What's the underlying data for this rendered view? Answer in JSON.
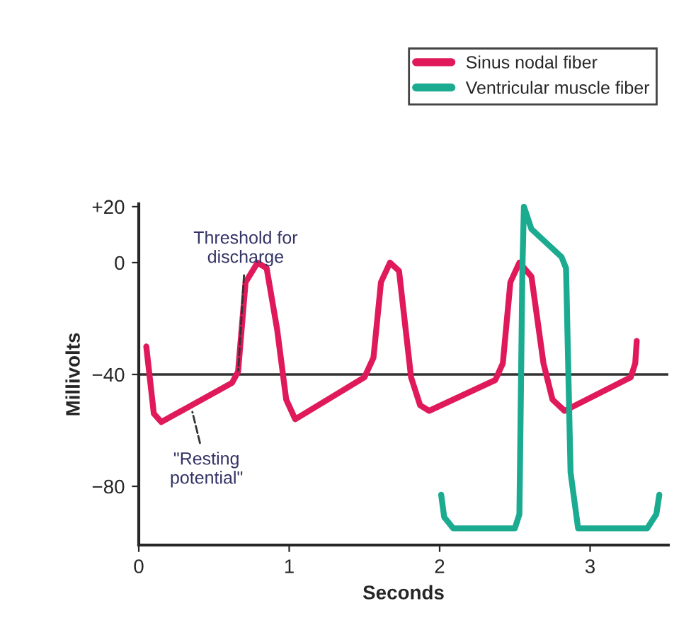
{
  "chart_data": {
    "type": "line",
    "xlabel": "Seconds",
    "ylabel": "Millivolts",
    "xlim": [
      0,
      3.52
    ],
    "ylim": [
      -101,
      21
    ],
    "xticks": [
      0,
      1,
      2,
      3
    ],
    "yticks": [
      {
        "value": 20,
        "label": "+20"
      },
      0,
      {
        "value": -40,
        "label": "−40"
      },
      {
        "value": -80,
        "label": "−80"
      }
    ],
    "grid": false,
    "legend": "top right",
    "line_style": "solid",
    "marker": "none",
    "series": [
      {
        "name": "Sinus nodal fiber",
        "color": "#e0195a",
        "x": [
          0.05,
          0.1,
          0.15,
          0.62,
          0.66,
          0.71,
          0.79,
          0.85,
          0.92,
          0.98,
          1.04,
          1.5,
          1.56,
          1.61,
          1.67,
          1.73,
          1.81,
          1.87,
          1.93,
          2.37,
          2.42,
          2.47,
          2.53,
          2.61,
          2.69,
          2.75,
          2.83,
          3.27,
          3.3,
          3.31
        ],
        "values": [
          -30,
          -54,
          -57,
          -43,
          -39,
          -7,
          0,
          -2,
          -24,
          -49,
          -56,
          -41,
          -34,
          -7,
          0,
          -3,
          -41,
          -51,
          -53,
          -42,
          -36,
          -7,
          0,
          -5,
          -36,
          -49,
          -53,
          -41,
          -36,
          -28
        ]
      },
      {
        "name": "Ventricular muscle fiber",
        "color": "#1aab90",
        "x": [
          2.01,
          2.03,
          2.09,
          2.5,
          2.53,
          2.55,
          2.56,
          2.61,
          2.81,
          2.84,
          2.87,
          2.92,
          3.38,
          3.44,
          3.46
        ],
        "values": [
          -83,
          -91,
          -95,
          -95,
          -90,
          -2,
          20,
          12,
          2,
          -2,
          -75,
          -95,
          -95,
          -90,
          -83
        ]
      }
    ],
    "ref_lines": [
      {
        "axis": "y",
        "value": -40,
        "color": "#333333",
        "line_style": "solid"
      }
    ],
    "annotations": [
      {
        "text": "Threshold for\ndischarge",
        "x": 0.66,
        "y": -40
      },
      {
        "text": "\"Resting\npotential\"",
        "x": 0.35,
        "y": -52
      }
    ]
  }
}
